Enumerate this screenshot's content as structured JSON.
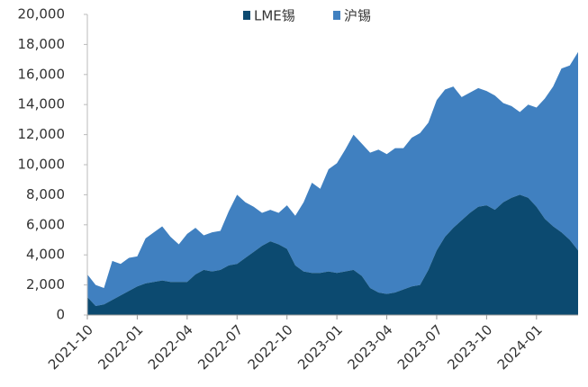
{
  "chart_data": {
    "type": "stacked_area",
    "categories": [
      "2021-10",
      null,
      null,
      null,
      null,
      null,
      "2022-01",
      null,
      null,
      null,
      null,
      null,
      "2022-04",
      null,
      null,
      null,
      null,
      null,
      "2022-07",
      null,
      null,
      null,
      null,
      null,
      "2022-10",
      null,
      null,
      null,
      null,
      null,
      "2023-01",
      null,
      null,
      null,
      null,
      null,
      "2023-04",
      null,
      null,
      null,
      null,
      null,
      "2023-07",
      null,
      null,
      null,
      null,
      null,
      "2023-10",
      null,
      null,
      null,
      null,
      null,
      "2024-01",
      null,
      null,
      null,
      null,
      null
    ],
    "series": [
      {
        "name": "LME锡",
        "color": "#0c4a70",
        "values": [
          1200,
          600,
          700,
          1000,
          1300,
          1600,
          1900,
          2100,
          2200,
          2300,
          2200,
          2200,
          2200,
          2700,
          3000,
          2900,
          3000,
          3300,
          3400,
          3800,
          4200,
          4600,
          4900,
          4700,
          4400,
          3300,
          2900,
          2800,
          2800,
          2900,
          2800,
          2900,
          3000,
          2600,
          1800,
          1500,
          1400,
          1500,
          1700,
          1900,
          2000,
          3000,
          4300,
          5200,
          5800,
          6300,
          6800,
          7200,
          7300,
          7000,
          7500,
          7800,
          8000,
          7800,
          7200,
          6400,
          5900,
          5500,
          5000,
          4300
        ]
      },
      {
        "name": "沪锡",
        "color": "#4080c0",
        "values": [
          1500,
          1400,
          1100,
          2600,
          2100,
          2200,
          2000,
          3000,
          3300,
          3600,
          3000,
          2500,
          3200,
          3100,
          2300,
          2600,
          2600,
          3600,
          4600,
          3700,
          3000,
          2200,
          2100,
          2100,
          2900,
          3300,
          4600,
          6000,
          5600,
          6800,
          7300,
          8100,
          9000,
          8800,
          9000,
          9500,
          9300,
          9600,
          9400,
          9900,
          10100,
          9800,
          10000,
          9800,
          9400,
          8200,
          8000,
          7900,
          7600,
          7600,
          6600,
          6100,
          5500,
          6200,
          6600,
          8000,
          9300,
          10900,
          11600,
          13200
        ]
      }
    ],
    "ylim": [
      0,
      20000
    ],
    "yticks": [
      0,
      {
        "value": 2000,
        "label": "2,000"
      },
      {
        "value": 4000,
        "label": "4,000"
      },
      {
        "value": 6000,
        "label": "6,000"
      },
      {
        "value": 8000,
        "label": "8,000"
      },
      {
        "value": 10000,
        "label": "10,000"
      },
      {
        "value": 12000,
        "label": "12,000"
      },
      {
        "value": 14000,
        "label": "14,000"
      },
      {
        "value": 16000,
        "label": "16,000"
      },
      {
        "value": 18000,
        "label": "18,000"
      },
      {
        "value": 20000,
        "label": "20,000"
      }
    ],
    "legend": "top",
    "grid": false
  }
}
